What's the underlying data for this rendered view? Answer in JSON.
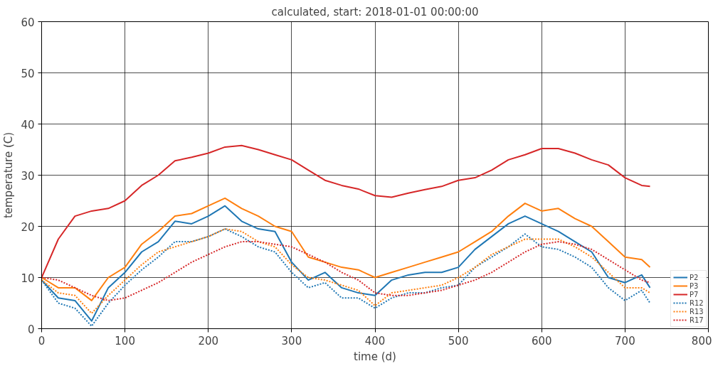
{
  "chart_data": {
    "type": "line",
    "title": "calculated, start: 2018-01-01 00:00:00",
    "xlabel": "time (d)",
    "ylabel": "temperature (C)",
    "x": [
      0,
      20,
      40,
      60,
      80,
      100,
      120,
      140,
      160,
      180,
      200,
      220,
      240,
      260,
      280,
      300,
      320,
      340,
      360,
      380,
      400,
      420,
      440,
      460,
      480,
      500,
      520,
      540,
      560,
      580,
      600,
      620,
      640,
      660,
      680,
      700,
      720,
      730
    ],
    "series": [
      {
        "name": "P2",
        "color": "#1f77b4",
        "line_style": "solid",
        "values": [
          9.5,
          6,
          5.5,
          1.5,
          8,
          11,
          15,
          17,
          21,
          20.5,
          22,
          24,
          21,
          19.5,
          19,
          13,
          9.5,
          11,
          8,
          7,
          6.5,
          9.5,
          10.5,
          11,
          11,
          12,
          15.5,
          18,
          20.5,
          22,
          20.5,
          19,
          17,
          15,
          10,
          9,
          10.5,
          8
        ]
      },
      {
        "name": "P3",
        "color": "#ff7f0e",
        "line_style": "solid",
        "values": [
          10,
          8,
          8,
          5.5,
          10,
          12,
          16.5,
          19,
          22,
          22.5,
          24,
          25.5,
          23.5,
          22,
          20,
          19,
          14,
          13,
          12,
          11.5,
          10,
          11,
          12,
          13,
          14,
          15,
          17,
          19,
          22,
          24.5,
          23,
          23.5,
          21.5,
          20,
          17,
          14,
          13.5,
          12
        ]
      },
      {
        "name": "P7",
        "color": "#d62728",
        "line_style": "solid",
        "values": [
          10,
          17.5,
          22,
          23,
          23.5,
          25,
          28,
          30,
          32.8,
          33.5,
          34.3,
          35.5,
          35.8,
          35,
          34,
          33,
          31,
          29,
          28,
          27.3,
          26,
          25.7,
          26.5,
          27.2,
          27.8,
          29,
          29.5,
          31,
          33,
          34,
          35.2,
          35.2,
          34.3,
          33,
          32,
          29.5,
          28,
          27.8
        ]
      },
      {
        "name": "R12",
        "color": "#1f77b4",
        "line_style": "dotted",
        "values": [
          9.5,
          5,
          4,
          0.5,
          5,
          8.5,
          11.5,
          14,
          17,
          17,
          18,
          19.5,
          18,
          16,
          15,
          11,
          8,
          9,
          6,
          6,
          4,
          6,
          7,
          7,
          8,
          8.5,
          12,
          14,
          16,
          18.5,
          16,
          15.5,
          14,
          12,
          8,
          5.5,
          7.5,
          5
        ]
      },
      {
        "name": "R13",
        "color": "#ff7f0e",
        "line_style": "dotted",
        "values": [
          9.5,
          7,
          6.5,
          3,
          6.5,
          9.5,
          12.5,
          15,
          16,
          17,
          18,
          19.5,
          19,
          17,
          16,
          12.5,
          10,
          9.5,
          8.5,
          7.5,
          4.5,
          7,
          7.5,
          8,
          8.5,
          10,
          12,
          14.5,
          16,
          17.5,
          17.5,
          17.5,
          16,
          14,
          11,
          8,
          8,
          7
        ]
      },
      {
        "name": "R17",
        "color": "#d62728",
        "line_style": "dotted",
        "values": [
          10,
          9.5,
          8,
          6.5,
          5.5,
          6,
          7.5,
          9,
          11,
          13,
          14.5,
          16,
          17,
          17,
          16.5,
          16,
          14.5,
          13,
          11,
          9.5,
          7,
          6.5,
          6.5,
          7,
          7.5,
          8.5,
          9.5,
          11,
          13,
          15,
          16.5,
          17,
          16.5,
          15.5,
          13.5,
          11.5,
          9.5,
          9
        ]
      }
    ],
    "xlim": [
      0,
      800
    ],
    "xticks": [
      0,
      100,
      200,
      300,
      400,
      500,
      600,
      700,
      800
    ],
    "ylim": [
      0,
      60
    ],
    "yticks": [
      0,
      10,
      20,
      30,
      40,
      50,
      60
    ],
    "grid": true,
    "legend": "bottom right"
  }
}
